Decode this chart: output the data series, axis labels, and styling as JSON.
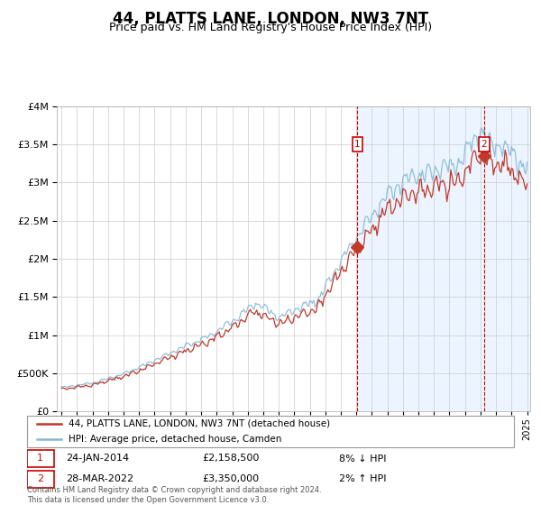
{
  "title": "44, PLATTS LANE, LONDON, NW3 7NT",
  "subtitle": "Price paid vs. HM Land Registry's House Price Index (HPI)",
  "legend_line1": "44, PLATTS LANE, LONDON, NW3 7NT (detached house)",
  "legend_line2": "HPI: Average price, detached house, Camden",
  "footnote": "Contains HM Land Registry data © Crown copyright and database right 2024.\nThis data is licensed under the Open Government Licence v3.0.",
  "sale1_date": "24-JAN-2014",
  "sale1_price": "£2,158,500",
  "sale1_hpi": "8% ↓ HPI",
  "sale2_date": "28-MAR-2022",
  "sale2_price": "£3,350,000",
  "sale2_hpi": "2% ↑ HPI",
  "sale1_year": 2014.07,
  "sale2_year": 2022.24,
  "sale1_value": 2158500,
  "sale2_value": 3350000,
  "start_year": 1995,
  "end_year": 2025,
  "ylim_max": 4000000,
  "red_color": "#c0392b",
  "blue_color": "#85b8d8",
  "bg_shaded": "#ddeeff",
  "vline_color": "#cc0000",
  "grid_color": "#cccccc",
  "title_fontsize": 12,
  "subtitle_fontsize": 9
}
